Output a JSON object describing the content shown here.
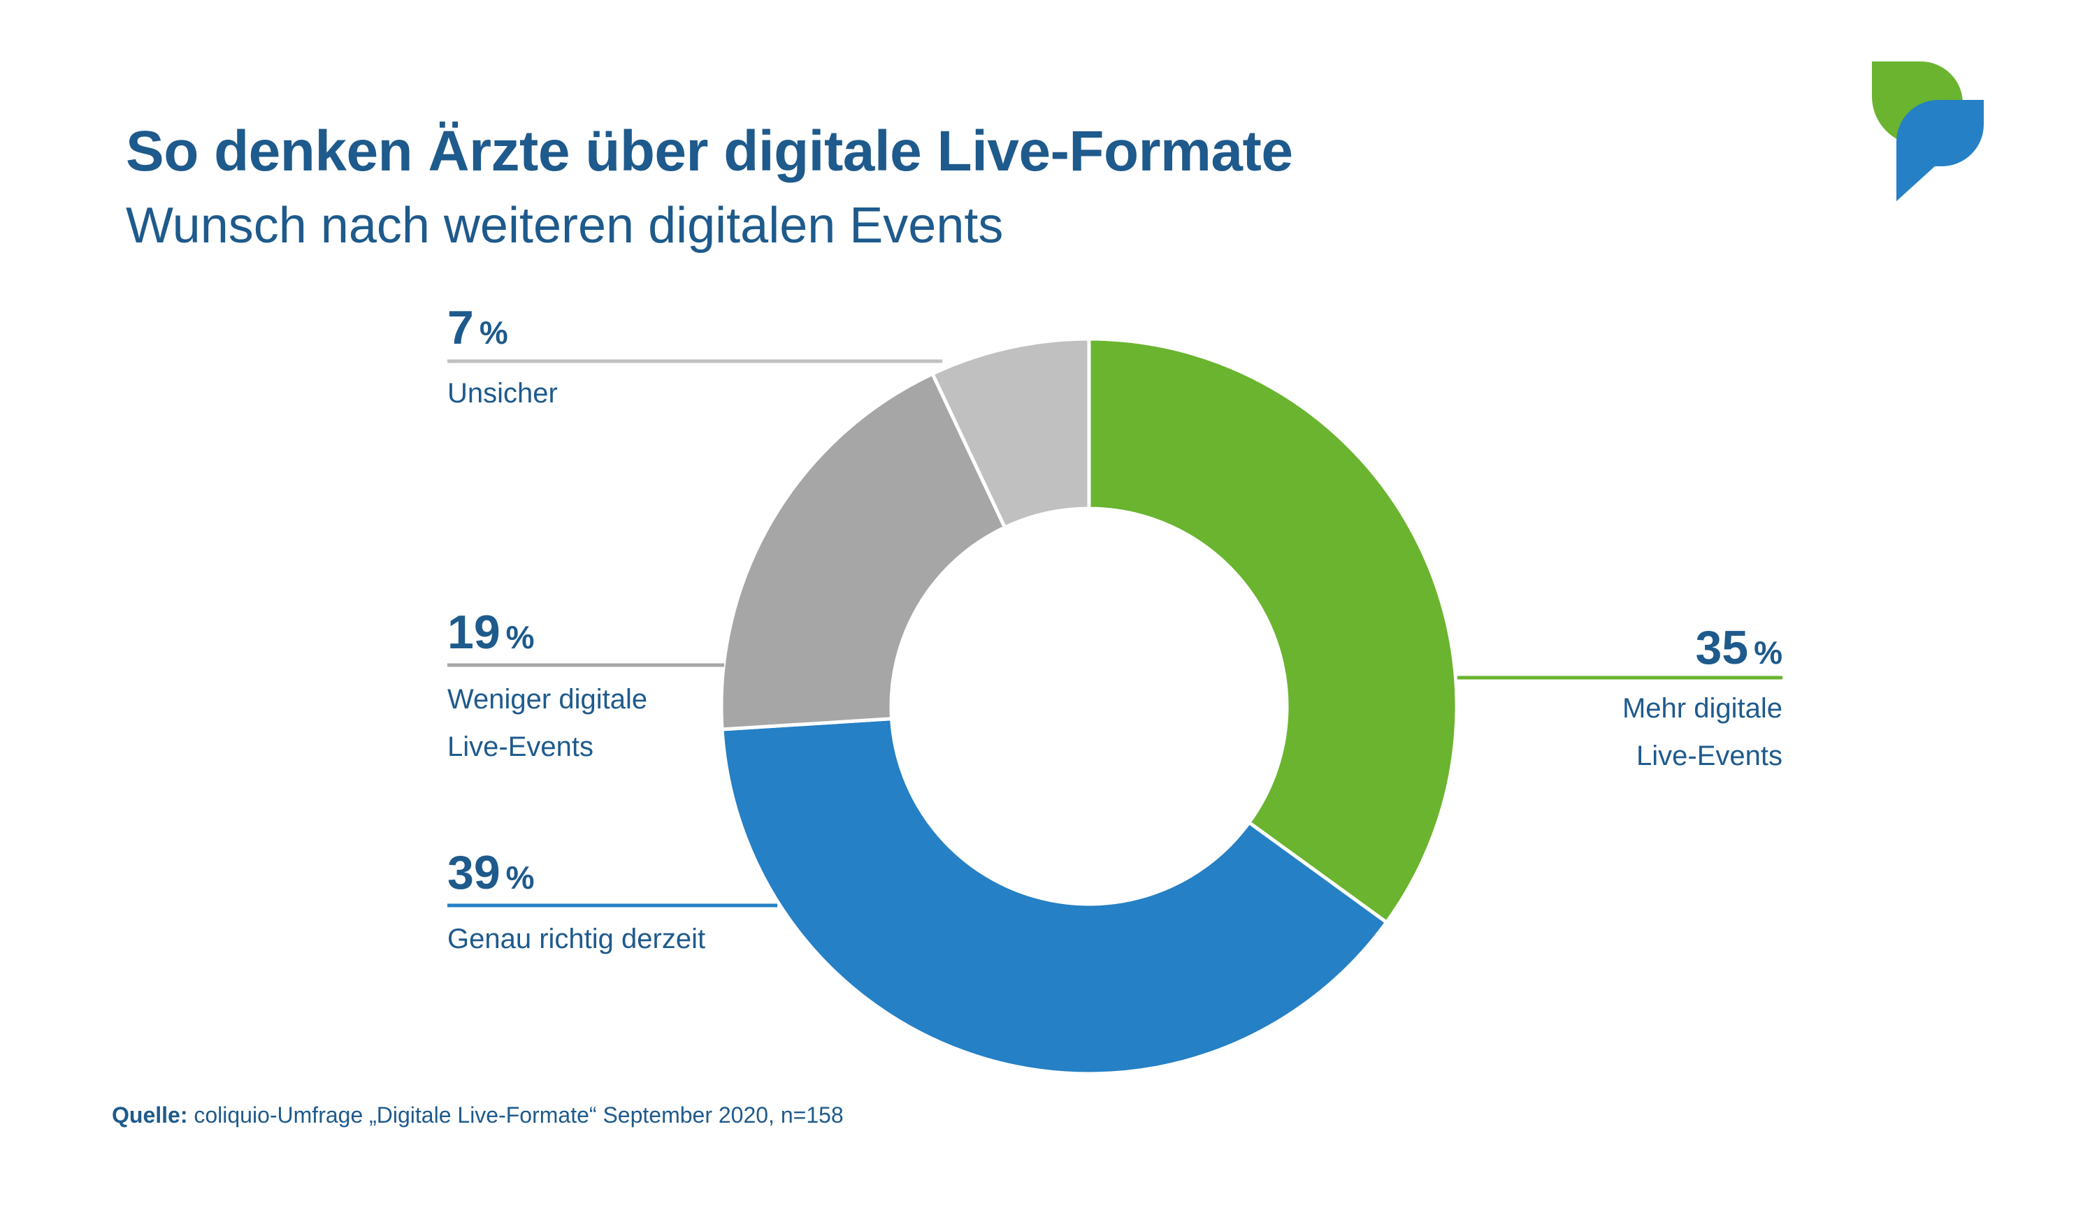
{
  "header": {
    "title": "So denken Ärzte über digitale Live-Formate",
    "subtitle": "Wunsch nach weiteren digitalen Events"
  },
  "footer": {
    "source_label": "Quelle:",
    "source_text": "coliquio-Umfrage „Digitale Live-Formate“ September 2020, n=158"
  },
  "logo": {
    "icon": "speech-bubbles-logo",
    "colors": [
      "#6ab42f",
      "#2580c5"
    ]
  },
  "chart_data": {
    "type": "pie",
    "donut": true,
    "unit": "%",
    "series": [
      {
        "label": "Mehr digitale Live-Events",
        "label_lines": [
          "Mehr digitale",
          "Live-Events"
        ],
        "value": 35,
        "display": "35",
        "color": "#6ab42f"
      },
      {
        "label": "Genau richtig derzeit",
        "label_lines": [
          "Genau richtig derzeit"
        ],
        "value": 39,
        "display": "39",
        "color": "#2580c5"
      },
      {
        "label": "Weniger digitale Live-Events",
        "label_lines": [
          "Weniger digitale",
          "Live-Events"
        ],
        "value": 19,
        "display": "19",
        "color": "#a6a6a6"
      },
      {
        "label": "Unsicher",
        "label_lines": [
          "Unsicher"
        ],
        "value": 7,
        "display": "7",
        "color": "#c0c0c0"
      }
    ]
  }
}
